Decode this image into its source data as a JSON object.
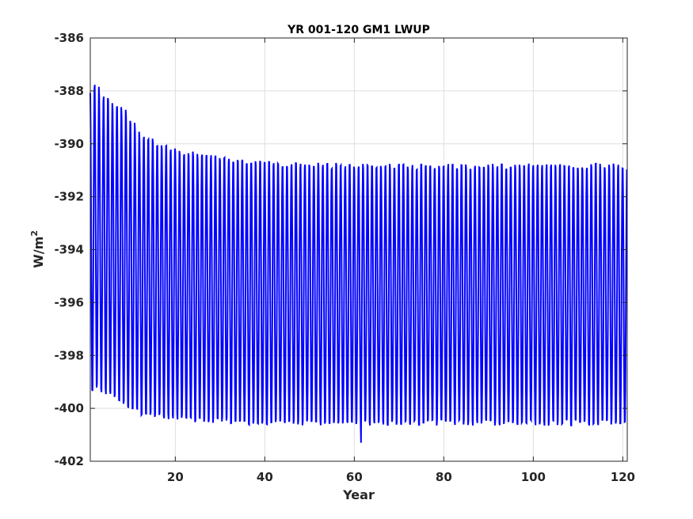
{
  "chart_data": {
    "type": "line",
    "title": "YR 001-120 GM1 LWUP",
    "xlabel": "Year",
    "ylabel": "W/m",
    "ylabel_superscript": "2",
    "xlim": [
      1,
      121
    ],
    "ylim": [
      -402,
      -386
    ],
    "xticks": [
      20,
      40,
      60,
      80,
      100,
      120
    ],
    "yticks": [
      -386,
      -388,
      -390,
      -392,
      -394,
      -396,
      -398,
      -400,
      -402
    ],
    "grid": true,
    "series_color": "#0000ff",
    "series": [
      {
        "x_start": 1,
        "x_end": 121,
        "samples_per_year": 12,
        "description": "monthly global-mean values, seasonal cycle",
        "annual_max": [
          [
            1,
            -388.5
          ],
          [
            2,
            -387.0
          ],
          [
            3,
            -388.3
          ],
          [
            4,
            -388.0
          ],
          [
            5,
            -388.0
          ],
          [
            6,
            -388.5
          ],
          [
            8,
            -388.5
          ],
          [
            10,
            -389.0
          ],
          [
            12,
            -389.5
          ],
          [
            15,
            -389.8
          ],
          [
            20,
            -390.1
          ],
          [
            25,
            -390.3
          ],
          [
            30,
            -390.4
          ],
          [
            40,
            -390.6
          ],
          [
            60,
            -390.7
          ],
          [
            80,
            -390.7
          ],
          [
            100,
            -390.7
          ],
          [
            121,
            -390.7
          ]
        ],
        "annual_min": [
          [
            1,
            -400.0
          ],
          [
            2,
            -399.0
          ],
          [
            3,
            -399.6
          ],
          [
            4,
            -399.5
          ],
          [
            6,
            -399.7
          ],
          [
            8,
            -399.9
          ],
          [
            10,
            -400.1
          ],
          [
            12,
            -400.3
          ],
          [
            15,
            -400.4
          ],
          [
            20,
            -400.5
          ],
          [
            25,
            -400.6
          ],
          [
            30,
            -400.6
          ],
          [
            40,
            -400.7
          ],
          [
            60,
            -400.7
          ],
          [
            80,
            -400.7
          ],
          [
            100,
            -400.7
          ],
          [
            121,
            -400.7
          ]
        ],
        "notable_minimum": [
          61,
          -401.3
        ]
      }
    ]
  }
}
